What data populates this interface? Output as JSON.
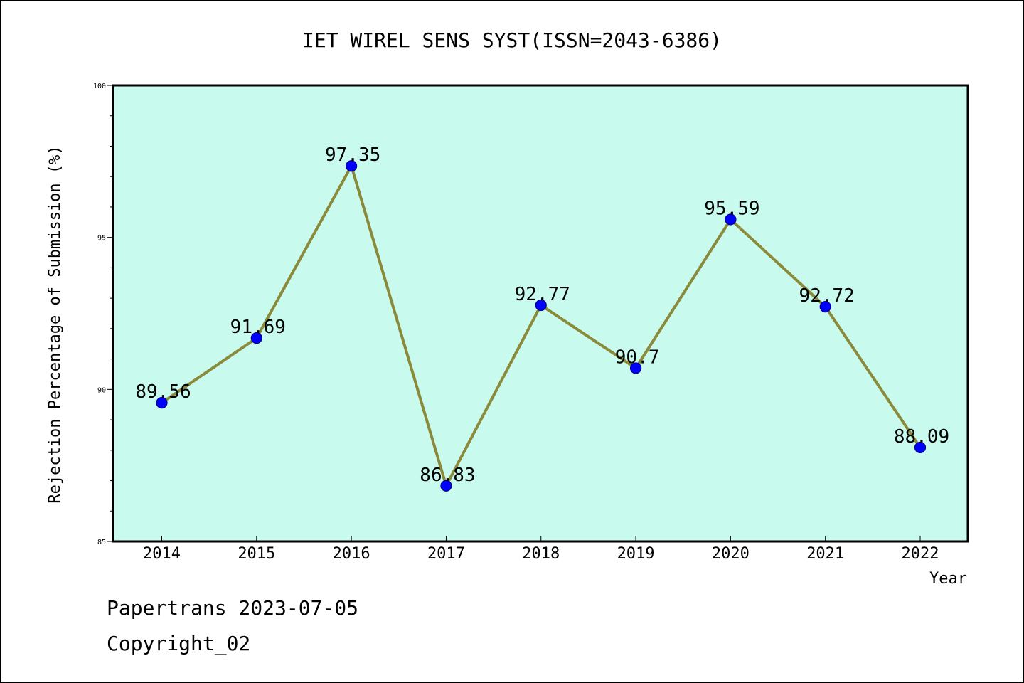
{
  "chart_data": {
    "type": "line",
    "title": "IET WIREL SENS SYST(ISSN=2043-6386)",
    "xlabel": "Year",
    "ylabel": "Rejection Percentage of Submission (%)",
    "categories": [
      "2014",
      "2015",
      "2016",
      "2017",
      "2018",
      "2019",
      "2020",
      "2021",
      "2022"
    ],
    "series": [
      {
        "values": [
          89.56,
          91.69,
          97.35,
          86.83,
          92.77,
          90.7,
          95.59,
          92.72,
          88.09
        ],
        "data_labels": [
          "89.56",
          "91.69",
          "97.35",
          "86.83",
          "92.77",
          "90.7",
          "95.59",
          "92.72",
          "88.09"
        ]
      }
    ],
    "ylim": [
      85,
      100
    ],
    "yticks": [
      "85",
      "90",
      "95",
      "100"
    ],
    "grid": false,
    "colors": {
      "plot_background": "#c8fbee",
      "line": "#8b8a3a",
      "marker": "#0000ff",
      "marker_edge": "#00008b"
    }
  },
  "footer": {
    "line1": "Papertrans 2023-07-05",
    "line2": "Copyright_02"
  }
}
